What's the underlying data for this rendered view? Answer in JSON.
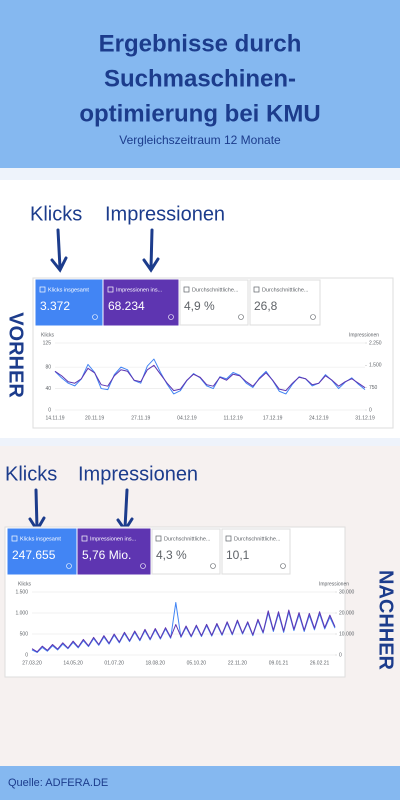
{
  "header": {
    "title": [
      "Ergebnisse durch",
      "Suchmaschinen-",
      "optimierung bei KMU"
    ],
    "subtitle": "Vergleichszeitraum 12 Monate"
  },
  "sections": [
    {
      "labels": [
        "Klicks",
        "Impressionen"
      ],
      "side_label": "VORHER",
      "metrics": [
        {
          "label": "Klicks insgesamt",
          "value": "3.372"
        },
        {
          "label": "Impressionen ins...",
          "value": "68.234"
        },
        {
          "label": "Durchschnittliche...",
          "value": "4,9 %"
        },
        {
          "label": "Durchschnittliche...",
          "value": "26,8"
        }
      ]
    },
    {
      "labels": [
        "Klicks",
        "Impressionen"
      ],
      "side_label": "NACHHER",
      "metrics": [
        {
          "label": "Klicks insgesamt",
          "value": "247.655"
        },
        {
          "label": "Impressionen ins...",
          "value": "5,76 Mio."
        },
        {
          "label": "Durchschnittliche...",
          "value": "4,3 %"
        },
        {
          "label": "Durchschnittliche...",
          "value": "10,1"
        }
      ]
    }
  ],
  "chart_data": [
    {
      "type": "line",
      "ylabel": "Klicks",
      "y2label": "Impressionen",
      "categories": [
        "14.11.19",
        null,
        null,
        null,
        null,
        null,
        "20.11.19",
        null,
        null,
        null,
        null,
        null,
        null,
        "27.11.19",
        null,
        null,
        null,
        null,
        null,
        null,
        "04.12.19",
        null,
        null,
        null,
        null,
        null,
        null,
        "11.12.19",
        null,
        null,
        null,
        null,
        null,
        "17.12.19",
        null,
        null,
        null,
        null,
        null,
        null,
        "24.12.19",
        null,
        null,
        null,
        null,
        null,
        null,
        "31.12.19"
      ],
      "series": [
        {
          "color": "#4285f4",
          "values": [
            72,
            60,
            50,
            45,
            58,
            85,
            70,
            40,
            38,
            66,
            80,
            75,
            55,
            50,
            82,
            95,
            70,
            48,
            30,
            36,
            55,
            68,
            60,
            45,
            40,
            62,
            58,
            70,
            65,
            50,
            42,
            60,
            72,
            55,
            35,
            30,
            48,
            62,
            58,
            45,
            50,
            66,
            55,
            40,
            52,
            60,
            48,
            38
          ]
        },
        {
          "color": "#5e35b1",
          "axis": "y2",
          "values": [
            1300,
            1150,
            950,
            900,
            1050,
            1400,
            1250,
            850,
            800,
            1150,
            1350,
            1300,
            1000,
            950,
            1350,
            1500,
            1200,
            900,
            650,
            700,
            1000,
            1200,
            1100,
            850,
            800,
            1100,
            1000,
            1200,
            1150,
            950,
            800,
            1050,
            1250,
            1000,
            700,
            650,
            900,
            1100,
            1050,
            850,
            900,
            1150,
            1000,
            800,
            950,
            1050,
            900,
            750
          ]
        }
      ],
      "ylim": [
        0,
        125
      ],
      "yticks": [
        0,
        40,
        80,
        125
      ],
      "y2lim": [
        0,
        2250
      ],
      "y2ticks": [
        0,
        750,
        {
          "value": 1500,
          "label": "1.500"
        },
        {
          "value": 2250,
          "label": "2.250"
        }
      ],
      "grid": true
    },
    {
      "type": "line",
      "ylabel": "Klicks",
      "y2label": "Impressionen",
      "categories": [
        "27.03.20",
        null,
        null,
        null,
        null,
        null,
        null,
        null,
        "14.05.20",
        null,
        null,
        null,
        null,
        null,
        null,
        null,
        "01.07.20",
        null,
        null,
        null,
        null,
        null,
        null,
        null,
        "18.08.20",
        null,
        null,
        null,
        null,
        null,
        null,
        null,
        "05.10.20",
        null,
        null,
        null,
        null,
        null,
        null,
        null,
        "22.11.20",
        null,
        null,
        null,
        null,
        null,
        null,
        null,
        "09.01.21",
        null,
        null,
        null,
        null,
        null,
        null,
        null,
        "26.02.21",
        null,
        null,
        null
      ],
      "series": [
        {
          "color": "#4285f4",
          "values": [
            120,
            60,
            180,
            90,
            220,
            120,
            260,
            150,
            300,
            170,
            340,
            200,
            390,
            230,
            430,
            260,
            470,
            290,
            510,
            320,
            540,
            340,
            580,
            360,
            600,
            380,
            620,
            400,
            1250,
            420,
            660,
            430,
            680,
            440,
            700,
            450,
            720,
            470,
            760,
            480,
            800,
            500,
            760,
            460,
            820,
            520,
            1000,
            560,
            980,
            540,
            1020,
            580,
            960,
            560,
            940,
            600,
            980,
            620,
            900,
            640
          ]
        },
        {
          "color": "#5e35b1",
          "axis": "y2",
          "values": [
            3000,
            1500,
            4200,
            2200,
            5000,
            2800,
            5800,
            3300,
            6600,
            3800,
            7400,
            4400,
            8400,
            5000,
            9200,
            5600,
            10000,
            6200,
            10800,
            6800,
            11400,
            7200,
            12200,
            7600,
            12600,
            8000,
            13000,
            8400,
            14500,
            8800,
            13800,
            9000,
            14200,
            9200,
            14600,
            9400,
            15000,
            9800,
            15800,
            10000,
            16600,
            10400,
            15800,
            9600,
            17000,
            10800,
            21000,
            11800,
            20600,
            11400,
            21400,
            12200,
            20200,
            11800,
            19800,
            12600,
            20600,
            13000,
            19000,
            13400
          ]
        }
      ],
      "ylim": [
        0,
        1500
      ],
      "yticks": [
        0,
        500,
        {
          "value": 1000,
          "label": "1.000"
        },
        {
          "value": 1500,
          "label": "1.500"
        }
      ],
      "y2lim": [
        0,
        30000
      ],
      "y2ticks": [
        0,
        {
          "value": 10000,
          "label": "10.000"
        },
        {
          "value": 20000,
          "label": "20.000"
        },
        {
          "value": 30000,
          "label": "30.000"
        }
      ],
      "grid": true
    }
  ],
  "footer": "Quelle: ADFERA.DE"
}
